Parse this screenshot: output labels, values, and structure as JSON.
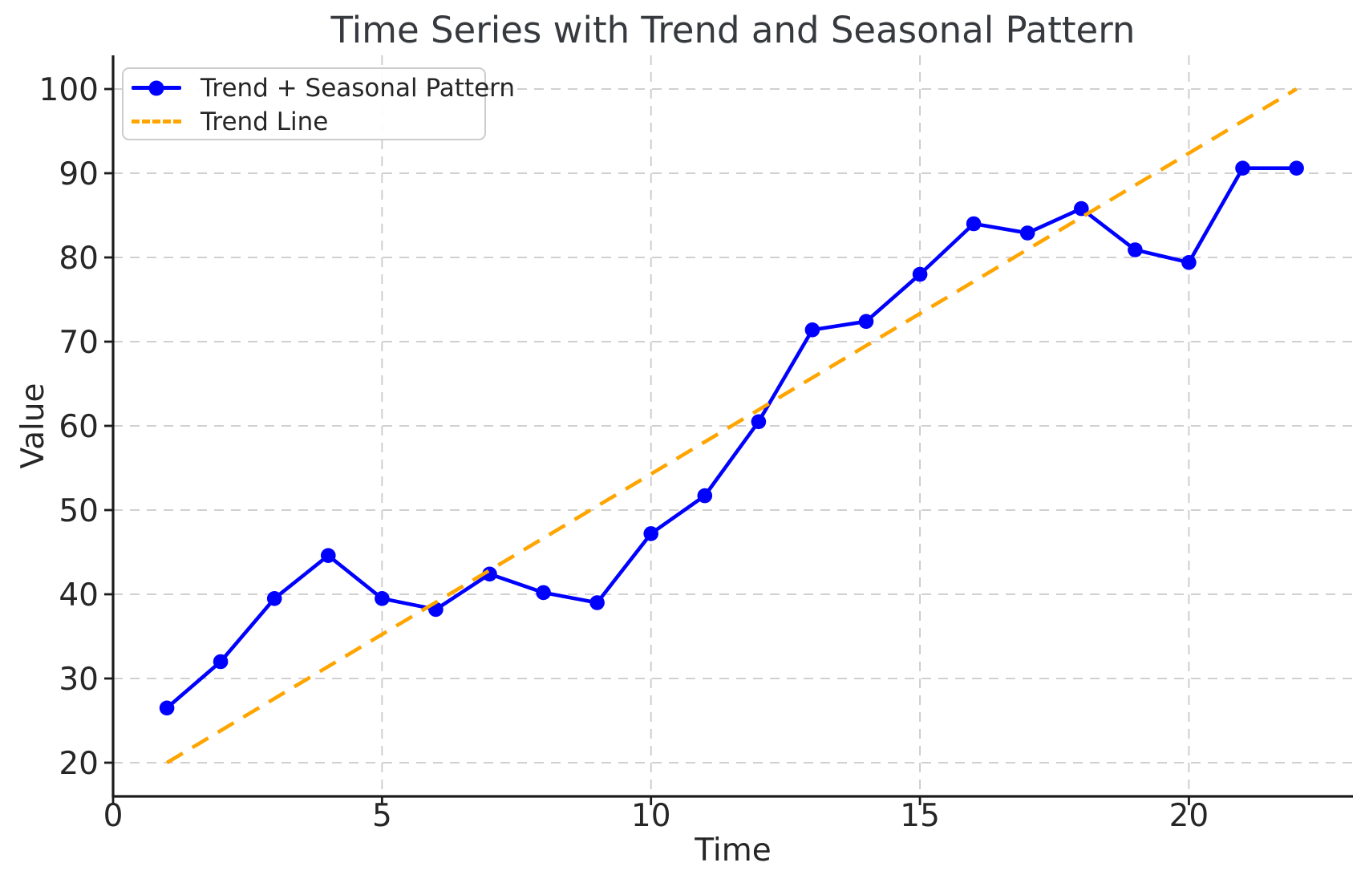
{
  "title": "Time Series with Trend and Seasonal Pattern",
  "colors": {
    "figure_bg": "#ffffff",
    "series": "#0000ff",
    "trend": "#ffa500",
    "grid": "#c9c9c9",
    "spine": "#1c1c1c",
    "text": "#262626",
    "title_text": "#36393d",
    "legend_border": "#cccccc"
  },
  "chart_data": {
    "type": "line",
    "title": "Time Series with Trend and Seasonal Pattern",
    "xlabel": "Time",
    "ylabel": "Value",
    "xlim": [
      0,
      23.05
    ],
    "ylim": [
      16,
      104
    ],
    "xticks": [
      0,
      5,
      10,
      15,
      20
    ],
    "yticks": [
      20,
      30,
      40,
      50,
      60,
      70,
      80,
      90,
      100
    ],
    "grid": true,
    "grid_style": "dashed",
    "legend_position": "upper left",
    "series": [
      {
        "name": "Trend + Seasonal Pattern",
        "style": "solid_with_markers",
        "color": "#0000ff",
        "x": [
          1,
          2,
          3,
          4,
          5,
          6,
          7,
          8,
          9,
          10,
          11,
          12,
          13,
          14,
          15,
          16,
          17,
          18,
          19,
          20,
          21,
          22
        ],
        "y": [
          26.5,
          32.0,
          39.5,
          44.6,
          39.5,
          38.2,
          42.4,
          40.2,
          39.0,
          47.2,
          51.7,
          60.5,
          71.4,
          72.4,
          78.0,
          84.0,
          82.9,
          85.8,
          80.9,
          79.4,
          90.6,
          90.6
        ]
      },
      {
        "name": "Trend Line",
        "style": "dashed",
        "color": "#ffa500",
        "x": [
          1,
          22
        ],
        "y": [
          20,
          100
        ]
      }
    ]
  }
}
